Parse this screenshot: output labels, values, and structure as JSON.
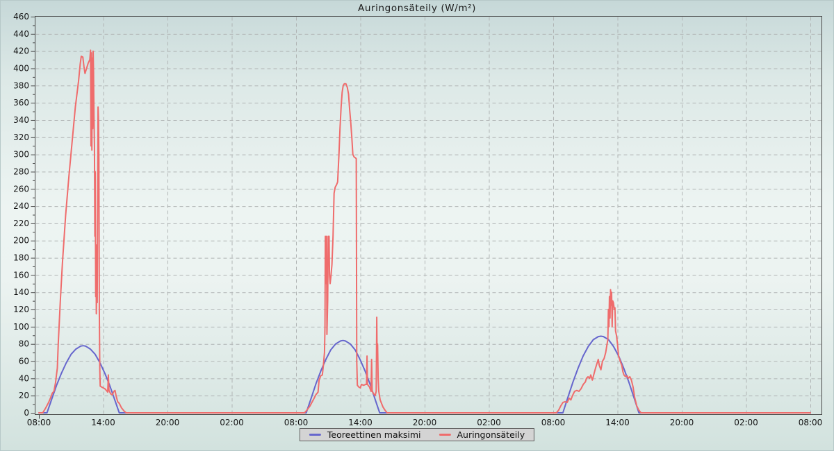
{
  "title": "Auringonsäteily (W/m²)",
  "legend": {
    "items": [
      {
        "label": "Teoreettinen maksimi",
        "color": "#6666cd"
      },
      {
        "label": "Auringonsäteily",
        "color": "#ef6c6c"
      }
    ]
  },
  "colors": {
    "grid": "#b0b4b4",
    "axis": "#474747",
    "tick_label": "#141414",
    "legend_bg": "#d4d4d4",
    "legend_border": "#5f5f5f"
  },
  "chart_data": {
    "type": "line",
    "title": "Auringonsäteily (W/m²)",
    "xlabel": "",
    "ylabel": "",
    "x_unit": "hours since first 08:00 tick (3-day span)",
    "x_range": [
      0,
      72
    ],
    "y_range": [
      0,
      460
    ],
    "y_tick_step": 20,
    "y_minor_tick_step": 10,
    "x_major_tick_step_hours": 6,
    "x_minor_tick_step_hours": 1,
    "grid": true,
    "grid_style": "dashed",
    "legend_position": "bottom-center",
    "x_tick_labels": [
      "08:00",
      "14:00",
      "20:00",
      "02:00",
      "08:00",
      "14:00",
      "20:00",
      "02:00",
      "08:00",
      "14:00",
      "20:00",
      "02:00",
      "08:00"
    ],
    "series": [
      {
        "name": "Teoreettinen maksimi",
        "color": "#6666cd",
        "points": [
          [
            0,
            0
          ],
          [
            0.75,
            0
          ],
          [
            1.2,
            16
          ],
          [
            1.65,
            32
          ],
          [
            2.1,
            46
          ],
          [
            2.55,
            58
          ],
          [
            3.0,
            68
          ],
          [
            3.45,
            74
          ],
          [
            3.9,
            77.5
          ],
          [
            4.13,
            78
          ],
          [
            4.35,
            77.5
          ],
          [
            4.8,
            74
          ],
          [
            5.25,
            68
          ],
          [
            5.7,
            58
          ],
          [
            6.15,
            46
          ],
          [
            6.6,
            32
          ],
          [
            7.05,
            16
          ],
          [
            7.5,
            0
          ],
          [
            24.95,
            0
          ],
          [
            25.41,
            17
          ],
          [
            25.86,
            34
          ],
          [
            26.32,
            49
          ],
          [
            26.78,
            62
          ],
          [
            27.23,
            73
          ],
          [
            27.69,
            80
          ],
          [
            28.15,
            83.5
          ],
          [
            28.38,
            84
          ],
          [
            28.6,
            83.5
          ],
          [
            29.06,
            80
          ],
          [
            29.52,
            73
          ],
          [
            29.97,
            62
          ],
          [
            30.43,
            49
          ],
          [
            30.89,
            34
          ],
          [
            31.34,
            17
          ],
          [
            31.8,
            0
          ],
          [
            48.9,
            0
          ],
          [
            49.37,
            18
          ],
          [
            49.85,
            36
          ],
          [
            50.32,
            52
          ],
          [
            50.79,
            66
          ],
          [
            51.27,
            77
          ],
          [
            51.74,
            85
          ],
          [
            52.21,
            88.5
          ],
          [
            52.45,
            89
          ],
          [
            52.69,
            88.5
          ],
          [
            53.16,
            85
          ],
          [
            53.63,
            77
          ],
          [
            54.11,
            66
          ],
          [
            54.58,
            52
          ],
          [
            55.05,
            36
          ],
          [
            55.53,
            18
          ],
          [
            56.0,
            0
          ],
          [
            72,
            0
          ]
        ]
      },
      {
        "name": "Auringonsäteily",
        "color": "#ef6c6c",
        "points": [
          [
            0,
            0
          ],
          [
            0.35,
            0
          ],
          [
            0.6,
            5
          ],
          [
            0.9,
            12
          ],
          [
            1.1,
            18
          ],
          [
            1.25,
            23
          ],
          [
            1.4,
            25
          ],
          [
            1.55,
            35
          ],
          [
            1.65,
            45
          ],
          [
            1.72,
            52
          ],
          [
            1.8,
            80
          ],
          [
            2.0,
            130
          ],
          [
            2.2,
            175
          ],
          [
            2.5,
            230
          ],
          [
            2.8,
            275
          ],
          [
            3.1,
            315
          ],
          [
            3.4,
            355
          ],
          [
            3.7,
            385
          ],
          [
            3.85,
            405
          ],
          [
            3.95,
            414
          ],
          [
            4.1,
            413
          ],
          [
            4.2,
            402
          ],
          [
            4.3,
            394
          ],
          [
            4.45,
            400
          ],
          [
            4.6,
            406
          ],
          [
            4.75,
            410
          ],
          [
            4.82,
            421
          ],
          [
            4.86,
            310
          ],
          [
            4.9,
            418
          ],
          [
            4.94,
            305
          ],
          [
            4.98,
            412
          ],
          [
            5.02,
            330
          ],
          [
            5.06,
            420
          ],
          [
            5.1,
            395
          ],
          [
            5.14,
            345
          ],
          [
            5.18,
            310
          ],
          [
            5.22,
            205
          ],
          [
            5.26,
            280
          ],
          [
            5.3,
            135
          ],
          [
            5.33,
            195
          ],
          [
            5.36,
            115
          ],
          [
            5.4,
            150
          ],
          [
            5.44,
            128
          ],
          [
            5.48,
            250
          ],
          [
            5.52,
            355
          ],
          [
            5.56,
            340
          ],
          [
            5.6,
            295
          ],
          [
            5.64,
            120
          ],
          [
            5.68,
            50
          ],
          [
            5.72,
            31
          ],
          [
            5.85,
            30
          ],
          [
            6.0,
            29
          ],
          [
            6.15,
            28
          ],
          [
            6.3,
            26
          ],
          [
            6.42,
            24
          ],
          [
            6.48,
            44
          ],
          [
            6.54,
            26
          ],
          [
            6.7,
            22
          ],
          [
            6.85,
            21
          ],
          [
            7.0,
            25
          ],
          [
            7.1,
            26
          ],
          [
            7.2,
            20
          ],
          [
            7.35,
            13
          ],
          [
            7.5,
            11
          ],
          [
            7.7,
            6
          ],
          [
            7.95,
            2
          ],
          [
            8.15,
            0
          ],
          [
            24.78,
            0
          ],
          [
            25.0,
            3
          ],
          [
            25.3,
            8
          ],
          [
            25.6,
            15
          ],
          [
            25.85,
            21
          ],
          [
            26.05,
            24
          ],
          [
            26.15,
            38
          ],
          [
            26.3,
            43
          ],
          [
            26.45,
            44
          ],
          [
            26.55,
            55
          ],
          [
            26.65,
            70
          ],
          [
            26.7,
            100
          ],
          [
            26.73,
            205
          ],
          [
            26.76,
            150
          ],
          [
            26.79,
            200
          ],
          [
            26.82,
            168
          ],
          [
            26.85,
            205
          ],
          [
            26.88,
            91
          ],
          [
            26.95,
            130
          ],
          [
            27.0,
            205
          ],
          [
            27.04,
            190
          ],
          [
            27.08,
            205
          ],
          [
            27.12,
            160
          ],
          [
            27.18,
            150
          ],
          [
            27.25,
            158
          ],
          [
            27.35,
            172
          ],
          [
            27.45,
            205
          ],
          [
            27.55,
            255
          ],
          [
            27.65,
            262
          ],
          [
            27.78,
            265
          ],
          [
            27.88,
            268
          ],
          [
            28.0,
            300
          ],
          [
            28.1,
            330
          ],
          [
            28.2,
            355
          ],
          [
            28.3,
            372
          ],
          [
            28.4,
            380
          ],
          [
            28.5,
            382
          ],
          [
            28.65,
            382
          ],
          [
            28.78,
            378
          ],
          [
            28.9,
            370
          ],
          [
            29.0,
            352
          ],
          [
            29.1,
            338
          ],
          [
            29.2,
            320
          ],
          [
            29.3,
            300
          ],
          [
            29.42,
            297
          ],
          [
            29.55,
            296
          ],
          [
            29.62,
            295
          ],
          [
            29.66,
            60
          ],
          [
            29.72,
            32
          ],
          [
            29.85,
            30
          ],
          [
            30.0,
            29
          ],
          [
            30.1,
            33
          ],
          [
            30.3,
            32
          ],
          [
            30.5,
            33
          ],
          [
            30.58,
            33
          ],
          [
            30.62,
            66
          ],
          [
            30.66,
            33
          ],
          [
            30.85,
            30
          ],
          [
            31.0,
            25
          ],
          [
            31.05,
            62
          ],
          [
            31.1,
            25
          ],
          [
            31.25,
            22
          ],
          [
            31.38,
            20
          ],
          [
            31.48,
            25
          ],
          [
            31.53,
            111
          ],
          [
            31.57,
            60
          ],
          [
            31.61,
            80
          ],
          [
            31.66,
            40
          ],
          [
            31.72,
            25
          ],
          [
            31.85,
            15
          ],
          [
            32.1,
            7
          ],
          [
            32.3,
            3
          ],
          [
            32.5,
            0
          ],
          [
            48.3,
            0
          ],
          [
            48.5,
            3
          ],
          [
            48.7,
            8
          ],
          [
            48.9,
            12
          ],
          [
            49.1,
            13
          ],
          [
            49.3,
            12
          ],
          [
            49.5,
            17
          ],
          [
            49.65,
            15
          ],
          [
            49.8,
            20
          ],
          [
            50.0,
            25
          ],
          [
            50.2,
            26
          ],
          [
            50.4,
            25
          ],
          [
            50.6,
            28
          ],
          [
            50.8,
            33
          ],
          [
            51.0,
            36
          ],
          [
            51.1,
            40
          ],
          [
            51.25,
            42
          ],
          [
            51.4,
            40
          ],
          [
            51.5,
            44
          ],
          [
            51.65,
            38
          ],
          [
            51.8,
            45
          ],
          [
            51.95,
            52
          ],
          [
            52.1,
            58
          ],
          [
            52.2,
            62
          ],
          [
            52.3,
            55
          ],
          [
            52.45,
            50
          ],
          [
            52.6,
            60
          ],
          [
            52.75,
            63
          ],
          [
            52.9,
            70
          ],
          [
            53.0,
            78
          ],
          [
            53.1,
            85
          ],
          [
            53.15,
            120
          ],
          [
            53.2,
            100
          ],
          [
            53.25,
            135
          ],
          [
            53.3,
            110
          ],
          [
            53.35,
            143
          ],
          [
            53.4,
            125
          ],
          [
            53.45,
            140
          ],
          [
            53.5,
            100
          ],
          [
            53.55,
            130
          ],
          [
            53.62,
            128
          ],
          [
            53.7,
            120
          ],
          [
            53.76,
            122
          ],
          [
            53.82,
            95
          ],
          [
            53.9,
            90
          ],
          [
            54.0,
            80
          ],
          [
            54.1,
            66
          ],
          [
            54.25,
            60
          ],
          [
            54.4,
            55
          ],
          [
            54.5,
            48
          ],
          [
            54.6,
            44
          ],
          [
            54.75,
            42
          ],
          [
            54.9,
            43
          ],
          [
            55.0,
            40
          ],
          [
            55.15,
            42
          ],
          [
            55.3,
            38
          ],
          [
            55.45,
            30
          ],
          [
            55.6,
            18
          ],
          [
            55.8,
            8
          ],
          [
            56.0,
            3
          ],
          [
            56.2,
            0
          ],
          [
            72,
            0
          ]
        ]
      }
    ]
  }
}
